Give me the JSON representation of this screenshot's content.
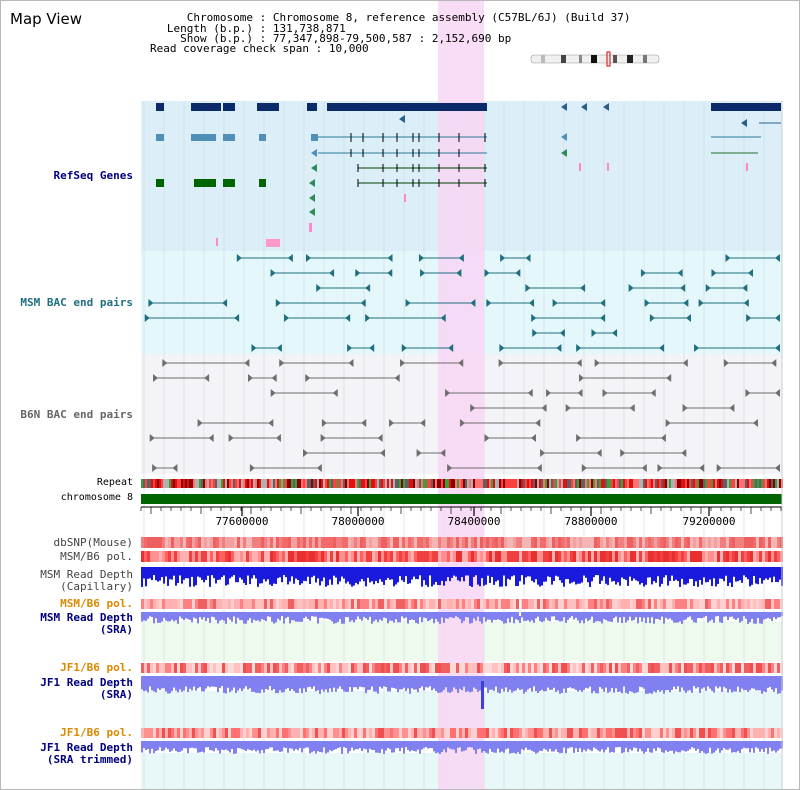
{
  "header": {
    "title": "Map View",
    "chromosome_key": "Chromosome",
    "chromosome_value": "Chromosome 8, reference assembly (C57BL/6J) (Build 37)",
    "length_key": "Length (b.p.)",
    "length_value": "131,738,871",
    "show_key": "Show (b.p.)",
    "show_value": "77,347,898-79,500,587 : 2,152,690 bp",
    "coverage_key": "Read coverage check span",
    "coverage_value": "10,000"
  },
  "tracks": {
    "refseq": "RefSeq Genes",
    "msm_bac": "MSM BAC end pairs",
    "b6n_bac": "B6N BAC end pairs",
    "repeat": "Repeat",
    "chromosome": "chromosome 8",
    "dbsnp": "dbSNP(Mouse)",
    "msm_b6_pol_1": "MSM/B6 pol.",
    "msm_depth_cap_1": "MSM Read Depth",
    "msm_depth_cap_2": "(Capillary)",
    "msm_b6_pol_2": "MSM/B6 pol.",
    "msm_depth_sra_1": "MSM Read Depth",
    "msm_depth_sra_2": "(SRA)",
    "jf1_b6_pol_1": "JF1/B6 pol.",
    "jf1_depth_sra_1": "JF1 Read Depth",
    "jf1_depth_sra_2": "(SRA)",
    "jf1_b6_pol_2": "JF1/B6 pol.",
    "jf1_depth_trim_1": "JF1 Read Depth",
    "jf1_depth_trim_2": "(SRA trimmed)"
  },
  "axis": {
    "ticks": [
      "77600000",
      "78000000",
      "78400000",
      "78800000",
      "79200000"
    ]
  },
  "colors": {
    "label_blue": "#000080",
    "label_teal": "#1f6f7f",
    "label_gray": "#666666",
    "label_orange": "#d88a00",
    "refseq_bg": "#dceff8",
    "msm_bg": "#e4f7fa",
    "b6n_bg": "#f3f3f8",
    "highlight": "#f8d6f3",
    "chromosome_bar": "#006400",
    "depth_blue": "#1a1adf",
    "depth_light": "#8080f0"
  }
}
